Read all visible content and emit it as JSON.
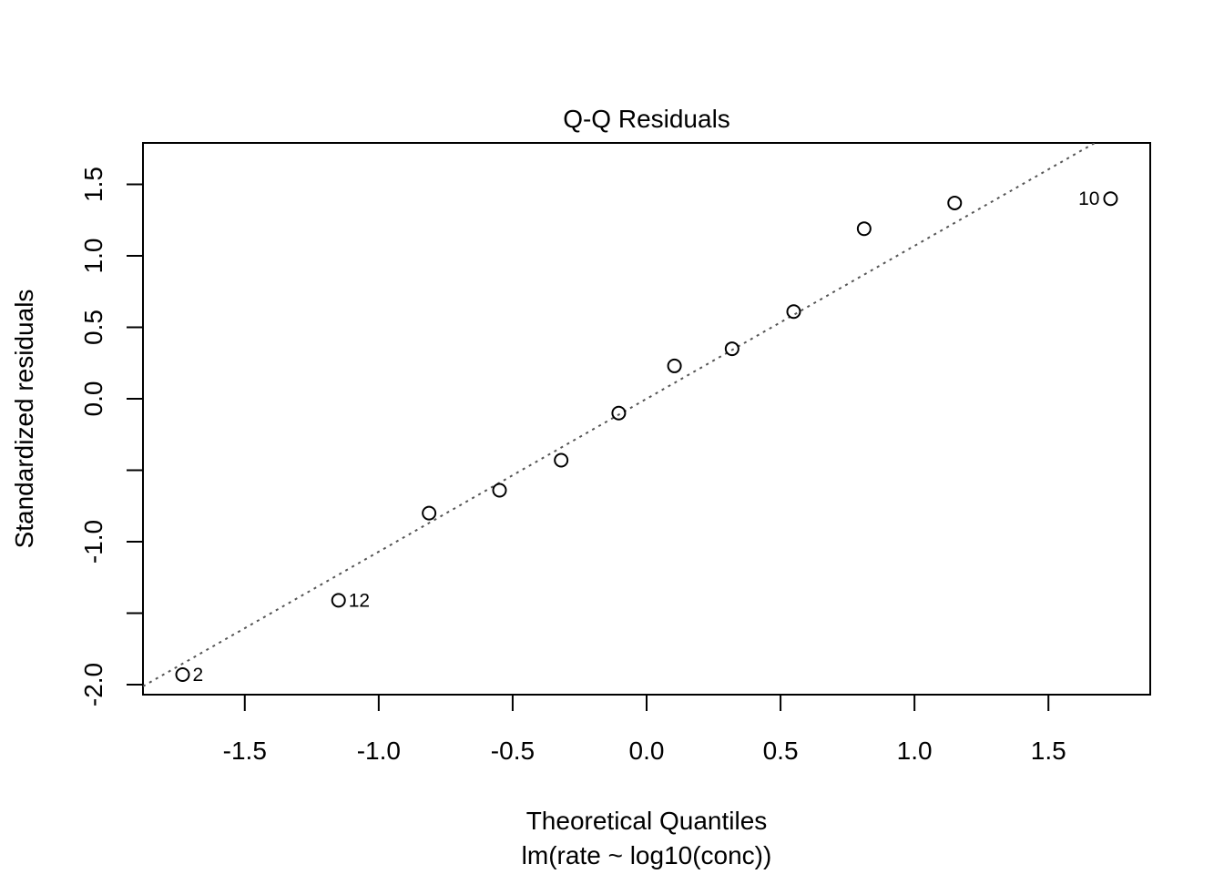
{
  "chart_data": {
    "type": "scatter",
    "title": "Q-Q Residuals",
    "xlabel": "Theoretical Quantiles",
    "subtitle": "lm(rate ~ log10(conc))",
    "ylabel": "Standardized residuals",
    "xlim": [
      -1.88,
      1.88
    ],
    "ylim": [
      -2.07,
      1.79
    ],
    "x_ticks": [
      -1.5,
      -1.0,
      -0.5,
      0.0,
      0.5,
      1.0,
      1.5
    ],
    "x_tick_labels": [
      "-1.5",
      "-1.0",
      "-0.5",
      "0.0",
      "0.5",
      "1.0",
      "1.5"
    ],
    "y_ticks": [
      -2.0,
      -1.5,
      -1.0,
      -0.5,
      0.0,
      0.5,
      1.0,
      1.5
    ],
    "y_tick_labels": [
      "-2.0",
      "",
      "-1.0",
      "",
      "0.0",
      "0.5",
      "1.0",
      "1.5"
    ],
    "grid": false,
    "points": [
      {
        "x": -1.732,
        "y": -1.93,
        "label": "2"
      },
      {
        "x": -1.15,
        "y": -1.41,
        "label": "12"
      },
      {
        "x": -0.812,
        "y": -0.8,
        "label": ""
      },
      {
        "x": -0.549,
        "y": -0.64,
        "label": ""
      },
      {
        "x": -0.319,
        "y": -0.43,
        "label": ""
      },
      {
        "x": -0.104,
        "y": -0.1,
        "label": ""
      },
      {
        "x": 0.104,
        "y": 0.23,
        "label": ""
      },
      {
        "x": 0.319,
        "y": 0.35,
        "label": ""
      },
      {
        "x": 0.549,
        "y": 0.61,
        "label": ""
      },
      {
        "x": 0.812,
        "y": 1.19,
        "label": ""
      },
      {
        "x": 1.15,
        "y": 1.37,
        "label": ""
      },
      {
        "x": 1.732,
        "y": 1.4,
        "label": "10"
      }
    ],
    "reference_line": {
      "intercept": 0.0,
      "slope": 1.07,
      "style": "dotted",
      "color": "#555555"
    },
    "point_color": "#000000"
  }
}
